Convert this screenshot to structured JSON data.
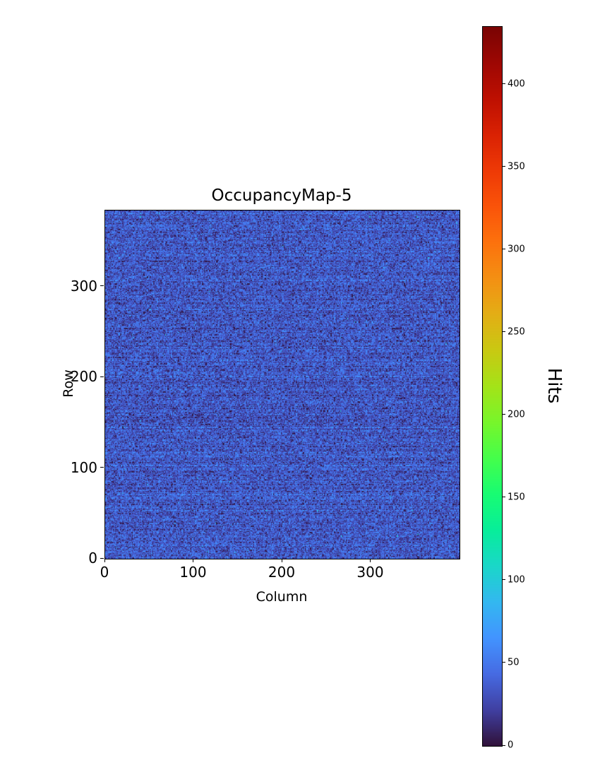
{
  "figure": {
    "background": "#ffffff",
    "text_color": "#000000"
  },
  "chart_data": {
    "type": "heatmap",
    "title": "OccupancyMap-5",
    "xlabel": "Column",
    "ylabel": "Row",
    "colorbar_label": "Hits",
    "colormap": "turbo",
    "x_ticks": [
      0,
      100,
      200,
      300
    ],
    "y_ticks": [
      0,
      100,
      200,
      300
    ],
    "colorbar_ticks": [
      0,
      50,
      100,
      150,
      200,
      250,
      300,
      350,
      400
    ],
    "x_range": [
      0,
      400
    ],
    "y_range": [
      0,
      384
    ],
    "vmin": 0,
    "vmax": 435,
    "grid_cols": 400,
    "grid_rows": 384,
    "legend_position": "right-colorbar",
    "grid": "off",
    "data_summary": {
      "description": "Near-uniform low-occupancy pixel hit map: most cells record roughly 20-60 hits (dark blue on the turbo scale), with sparse near-zero dark speckles, faint alternating-row striping, and a few isolated hot pixels reaching the ~435-hit maximum that sets the colorbar range.",
      "mean_hits": 35,
      "hit_spread": 15,
      "dark_speckle_fraction": 0.06,
      "max_hits": 435,
      "min_hits": 0
    }
  }
}
